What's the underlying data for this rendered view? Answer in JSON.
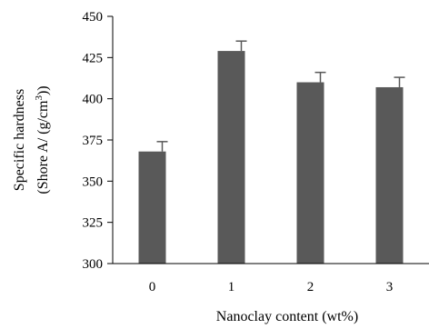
{
  "chart_data": {
    "type": "bar",
    "title": "",
    "xlabel": "Nanoclay content  (wt%)",
    "ylabel_line1": "Specific hardness",
    "ylabel_line2_prefix": "(Shore A/ (g/cm",
    "ylabel_line2_sup": "3",
    "ylabel_line2_suffix": "))",
    "categories": [
      "0",
      "1",
      "2",
      "3"
    ],
    "values": [
      368,
      429,
      410,
      407
    ],
    "errors": [
      6,
      6,
      6,
      6
    ],
    "ylim": [
      300,
      450
    ],
    "yticks": [
      300,
      325,
      350,
      375,
      400,
      425,
      450
    ],
    "ytick_labels": [
      "300",
      "325",
      "350",
      "375",
      "400",
      "425",
      "450"
    ],
    "grid": false,
    "legend": "none",
    "bar_color": "#595959",
    "axis_color": "#000000"
  }
}
